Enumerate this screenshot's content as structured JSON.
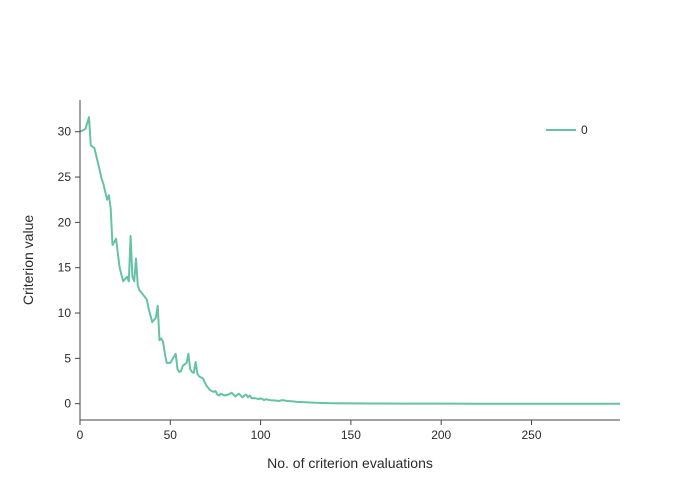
{
  "chart_data": {
    "type": "line",
    "xlabel": "No. of criterion evaluations",
    "ylabel": "Criterion value",
    "xlim": [
      0,
      299
    ],
    "ylim": [
      -1.8,
      33.5
    ],
    "xticks": [
      0,
      50,
      100,
      150,
      200,
      250
    ],
    "yticks": [
      0,
      5,
      10,
      15,
      20,
      25,
      30
    ],
    "grid": false,
    "legend_position": "top-right",
    "line_color": "#66c2a5",
    "series": [
      {
        "name": "0",
        "x": [
          0,
          3,
          5,
          6,
          8,
          10,
          12,
          13,
          15,
          16,
          17,
          18,
          20,
          21,
          22,
          23,
          24,
          26,
          27,
          28,
          29,
          30,
          31,
          32,
          33,
          35,
          37,
          38,
          40,
          42,
          43,
          44,
          45,
          46,
          47,
          48,
          49,
          50,
          53,
          54,
          55,
          56,
          57,
          59,
          60,
          61,
          62,
          63,
          64,
          65,
          66,
          67,
          68,
          70,
          72,
          74,
          75,
          76,
          77,
          78,
          80,
          82,
          84,
          86,
          88,
          90,
          91,
          92,
          93,
          94,
          95,
          97,
          99,
          100,
          102,
          103,
          105,
          108,
          110,
          112,
          115,
          118,
          120,
          125,
          130,
          135,
          140,
          150,
          160,
          180,
          200,
          220,
          250,
          280,
          299
        ],
        "y": [
          30,
          30.3,
          31.6,
          28.5,
          28.2,
          26.5,
          24.8,
          24.2,
          22.5,
          23.0,
          21.5,
          17.5,
          18.2,
          16.5,
          15.0,
          14.2,
          13.5,
          14.0,
          13.5,
          18.5,
          14.0,
          13.5,
          16.0,
          13.0,
          12.5,
          12.0,
          11.5,
          10.5,
          9.0,
          9.5,
          10.8,
          7.0,
          7.2,
          6.8,
          5.5,
          4.5,
          4.5,
          4.5,
          5.5,
          3.8,
          3.5,
          3.6,
          4.2,
          4.5,
          5.5,
          3.8,
          3.5,
          3.4,
          4.6,
          3.3,
          3.0,
          2.9,
          2.8,
          2.0,
          1.5,
          1.3,
          1.4,
          1.0,
          0.9,
          1.1,
          0.9,
          1.0,
          1.2,
          0.8,
          1.1,
          0.7,
          0.9,
          1.0,
          0.7,
          0.9,
          0.6,
          0.6,
          0.5,
          0.6,
          0.4,
          0.5,
          0.4,
          0.35,
          0.3,
          0.4,
          0.3,
          0.25,
          0.2,
          0.15,
          0.1,
          0.08,
          0.05,
          0.03,
          0.02,
          0.01,
          0.01,
          0.0,
          0.0,
          0.0,
          0.0
        ]
      }
    ]
  }
}
